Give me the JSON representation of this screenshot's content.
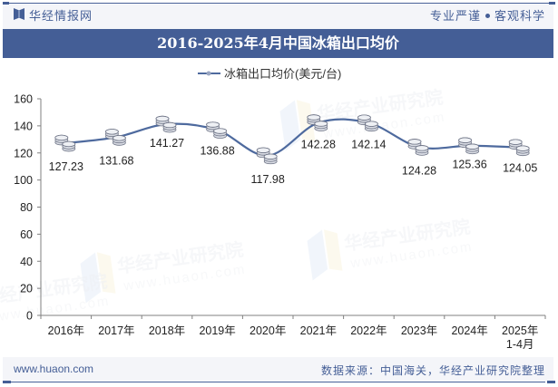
{
  "header": {
    "brand": "华经情报网",
    "slogan_left": "专业严谨",
    "slogan_right": "客观科学",
    "title": "2016-2025年4月中国冰箱出口均价"
  },
  "footer": {
    "url": "www.huaon.com",
    "source": "数据来源：中国海关，华经产业研究院整理"
  },
  "watermark": {
    "text": "华经产业研究院",
    "url": "www.huaon.com"
  },
  "colors": {
    "brand": "#445E96",
    "line": "#4E6A9E",
    "axis": "#808080",
    "label": "#222222"
  },
  "chart_data": {
    "type": "line",
    "title": "2016-2025年4月中国冰箱出口均价",
    "xlabel": "",
    "ylabel": "",
    "legend": [
      "冰箱出口均价(美元/台)"
    ],
    "legend_position": "top",
    "grid": false,
    "ylim": [
      0,
      160
    ],
    "yticks": [
      0,
      20,
      40,
      60,
      80,
      100,
      120,
      140,
      160
    ],
    "categories": [
      "2016年",
      "2017年",
      "2018年",
      "2019年",
      "2020年",
      "2021年",
      "2022年",
      "2023年",
      "2024年",
      "2025年\n1-4月"
    ],
    "series": [
      {
        "name": "冰箱出口均价(美元/台)",
        "values": [
          127.23,
          131.68,
          141.27,
          136.88,
          117.98,
          142.28,
          142.14,
          124.28,
          125.36,
          124.05
        ],
        "labels": [
          "127.23",
          "131.68",
          "141.27",
          "136.88",
          "117.98",
          "142.28",
          "142.14",
          "124.28",
          "125.36",
          "124.05"
        ],
        "smooth": true,
        "marker": "coin-stack"
      }
    ]
  }
}
